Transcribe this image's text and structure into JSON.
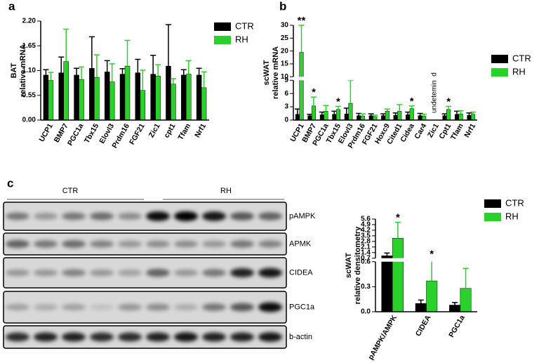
{
  "panels": [
    "a",
    "b",
    "c"
  ],
  "chart_data": [
    {
      "type": "bar",
      "ylabel": [
        "BAT",
        "relative mRNA"
      ],
      "categories": [
        "UCP1",
        "BMP7",
        "PGC1a",
        "Tbx15",
        "Elovl3",
        "Prdm16",
        "FGF21",
        "Zic1",
        "cpt1",
        "Tfam",
        "Nrf1"
      ],
      "series": [
        {
          "name": "CTR",
          "color": "#000000",
          "values": [
            1.0,
            1.05,
            1.0,
            1.15,
            1.07,
            1.02,
            1.05,
            1.02,
            1.2,
            1.0,
            1.0
          ],
          "errors": [
            0.12,
            0.35,
            0.15,
            0.7,
            0.25,
            0.12,
            0.3,
            0.42,
            0.92,
            0.12,
            0.15
          ]
        },
        {
          "name": "RH",
          "color": "#2bd12b",
          "values": [
            0.88,
            1.3,
            0.9,
            0.95,
            0.85,
            1.2,
            0.66,
            0.98,
            0.8,
            1.02,
            0.72
          ],
          "errors": [
            0.18,
            0.72,
            0.28,
            0.5,
            0.4,
            0.57,
            0.45,
            0.25,
            0.12,
            0.3,
            0.35
          ]
        }
      ],
      "ylim": [
        0,
        2.2
      ],
      "yticks": [
        {
          "value": 0,
          "label": "0.00"
        },
        0.55,
        {
          "value": 1.1,
          "label": "1.10"
        },
        1.65,
        {
          "value": 2.2,
          "label": "2.20"
        }
      ]
    },
    {
      "type": "bar",
      "ylabel": [
        "scWAT",
        "relative mRNA"
      ],
      "categories": [
        "UCP1",
        "BMP7",
        "PGC1a",
        "Tbx15",
        "Elovl3",
        "Prdm16",
        "FGF21",
        "Hoxc9",
        "Cited1",
        "Cidea",
        "Car4",
        "Zic1",
        "Cpt1",
        "Tfam",
        "Nrf1"
      ],
      "series": [
        {
          "name": "CTR",
          "color": "#000000",
          "values": [
            1.3,
            1.0,
            1.2,
            1.3,
            1.4,
            1.0,
            1.0,
            1.0,
            1.1,
            1.2,
            1.0,
            null,
            1.0,
            1.3,
            1.1
          ],
          "errors": [
            1.2,
            0.3,
            0.6,
            0.7,
            1.3,
            0.5,
            0.4,
            0.4,
            0.5,
            0.6,
            0.5,
            null,
            0.4,
            0.7,
            0.5
          ]
        },
        {
          "name": "RH",
          "color": "#2bd12b",
          "values": [
            19.5,
            3.2,
            2.0,
            2.4,
            3.8,
            0.9,
            0.8,
            2.0,
            2.0,
            2.6,
            0.9,
            null,
            2.4,
            1.4,
            1.3
          ],
          "errors": [
            10.5,
            2.0,
            1.3,
            0.7,
            5.2,
            0.5,
            0.3,
            0.5,
            1.5,
            0.6,
            0.4,
            null,
            0.7,
            0.7,
            0.5
          ],
          "annotations": [
            "**",
            "*",
            null,
            "*",
            null,
            null,
            null,
            null,
            null,
            "*",
            null,
            null,
            "*",
            null,
            null
          ]
        }
      ],
      "note": "undetemined",
      "ylim": [
        0,
        30
      ],
      "axis_break": [
        9,
        10
      ],
      "yticks": [
        0,
        3,
        6,
        9,
        10,
        15,
        20,
        25,
        30
      ]
    },
    {
      "type": "bar",
      "ylabel": [
        "scWAT",
        "relative densitometry"
      ],
      "categories": [
        "pAMPK/AMPK",
        "CIDEA",
        "PGC1a"
      ],
      "series": [
        {
          "name": "CTR",
          "color": "#000000",
          "values": [
            1.0,
            0.1,
            0.08
          ],
          "errors": [
            0.35,
            0.04,
            0.03
          ]
        },
        {
          "name": "RH",
          "color": "#2bd12b",
          "values": [
            3.2,
            0.37,
            0.28
          ],
          "errors": [
            2.0,
            0.24,
            0.24
          ],
          "annotations": [
            "*",
            "*",
            null
          ]
        }
      ],
      "ylim": [
        0,
        5.6
      ],
      "axis_break": [
        0.6,
        0.7
      ],
      "yticks": [
        {
          "value": 0,
          "label": "0.0"
        },
        0.3,
        0.6,
        0.7,
        1.4,
        2.1,
        2.8,
        3.5,
        4.2,
        4.9,
        5.6
      ]
    }
  ],
  "blot": {
    "groups": [
      "CTR",
      "RH"
    ],
    "rows": [
      "pAMPK",
      "APMK",
      "CIDEA",
      "PGC1a",
      "b-actin"
    ]
  }
}
